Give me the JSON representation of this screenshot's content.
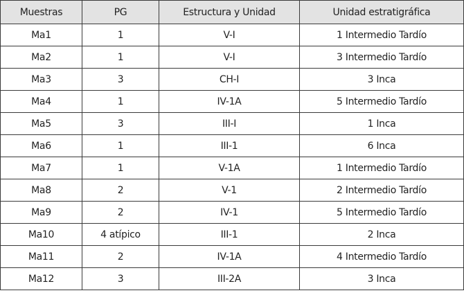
{
  "table": {
    "headers": [
      "Muestras",
      "PG",
      "Estructura y Unidad",
      "Unidad estratigráfica"
    ],
    "rows": [
      [
        "Ma1",
        "1",
        "V-I",
        "1 Intermedio Tardío"
      ],
      [
        "Ma2",
        "1",
        "V-I",
        "3 Intermedio Tardío"
      ],
      [
        "Ma3",
        "3",
        "CH-I",
        "3 Inca"
      ],
      [
        "Ma4",
        "1",
        "IV-1A",
        "5 Intermedio Tardío"
      ],
      [
        "Ma5",
        "3",
        "III-I",
        "1 Inca"
      ],
      [
        "Ma6",
        "1",
        "III-1",
        "6 Inca"
      ],
      [
        "Ma7",
        "1",
        "V-1A",
        "1 Intermedio Tardío"
      ],
      [
        "Ma8",
        "2",
        "V-1",
        "2 Intermedio Tardío"
      ],
      [
        "Ma9",
        "2",
        "IV-1",
        "5 Intermedio Tardío"
      ],
      [
        "Ma10",
        "4 atípico",
        "III-1",
        "2 Inca"
      ],
      [
        "Ma11",
        "2",
        "IV-1A",
        "4 Intermedio Tardío"
      ],
      [
        "Ma12",
        "3",
        "III-2A",
        "3 Inca"
      ]
    ]
  },
  "colors": {
    "header_bg": "#e3e3e3",
    "border": "#3a3a3a"
  }
}
